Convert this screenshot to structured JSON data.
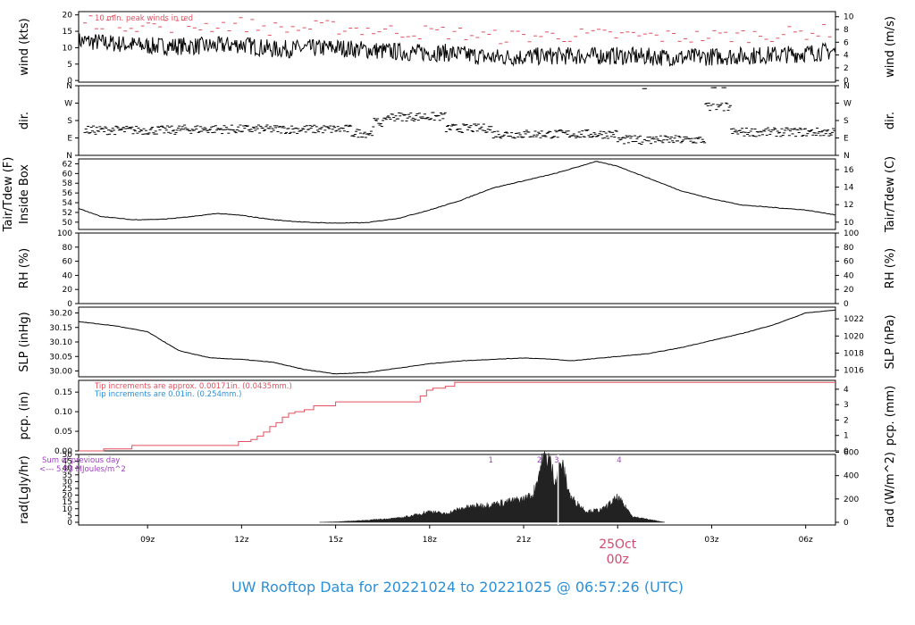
{
  "footer_title": "UW Rooftop Data for 20221024  to  20221025 @ 06:57:26  (UTC)",
  "colors": {
    "axis": "#000000",
    "peak": "#e0505f",
    "note_red": "#e0505f",
    "note_blue": "#2b8fd8",
    "note_purple": "#a040c0",
    "day": "#d04a70",
    "footer": "#2b8fd8"
  },
  "chart_data": {
    "type": "line",
    "x_axis": {
      "range_hours": [
        6.8,
        30.95
      ],
      "tick_hours": [
        9,
        12,
        15,
        18,
        21,
        27,
        30
      ],
      "tick_labels": [
        "09z",
        "12z",
        "15z",
        "18z",
        "21z",
        "03z",
        "06z"
      ],
      "day_label": "25Oct",
      "day_sublabel": "00z",
      "day_hour": 24
    },
    "panels": [
      {
        "id": "wind",
        "ylabel": "wind (kts)",
        "ylabel2": "wind (m/s)",
        "ylim": [
          -0.5,
          21
        ],
        "ticks": [
          0,
          5,
          10,
          15,
          20
        ],
        "right_ticks": [
          0,
          2,
          4,
          6,
          8,
          10
        ],
        "right_factor": 0.514444,
        "note": "10 min. peak winds in red",
        "series": [
          {
            "kind": "wind",
            "hours": [
              7,
              9,
              11,
              12,
              13,
              15,
              16.5,
              17.5,
              18.5,
              20,
              22,
              24,
              26,
              28,
              29.5,
              30.95
            ],
            "values": [
              12,
              10.5,
              10.5,
              11,
              9.5,
              10,
              9,
              8.5,
              8.5,
              7,
              7.5,
              7.5,
              7,
              7.5,
              8,
              9
            ]
          }
        ]
      },
      {
        "id": "dir",
        "ylabel": "dir.",
        "ylabel2": "dir.",
        "ylim": [
          0,
          360
        ],
        "ticks": [
          0,
          90,
          180,
          270,
          360
        ],
        "tick_labels": [
          "N",
          "E",
          "S",
          "W",
          "N"
        ],
        "right_tick_labels": [
          "N",
          "E",
          "S",
          "W",
          "N"
        ]
      },
      {
        "id": "temp",
        "ylabel": "Tair/Tdew (F)",
        "ylabel_line2": "Inside Box",
        "ylabel2": "Tair/Tdew (C)",
        "ylim": [
          48.5,
          63
        ],
        "ticks": [
          50,
          52,
          54,
          56,
          58,
          60,
          62
        ],
        "right_ticks": [
          10,
          12,
          14,
          16
        ],
        "series": [
          {
            "name": "Tair",
            "hours": [
              6.8,
              7.5,
              8.5,
              9.5,
              10.5,
              11.2,
              12,
              13,
              14,
              15,
              16,
              17,
              18,
              19,
              20,
              21,
              22,
              22.8,
              23.3,
              24,
              25,
              26,
              27,
              28,
              29,
              30,
              30.95
            ],
            "values": [
              52.8,
              51.2,
              50.5,
              50.6,
              51.2,
              51.8,
              51.4,
              50.5,
              50,
              49.8,
              49.9,
              50.8,
              52.5,
              54.5,
              57,
              58.5,
              60,
              61.5,
              62.5,
              61.5,
              59,
              56.5,
              54.8,
              53.5,
              53,
              52.5,
              51.5
            ]
          }
        ]
      },
      {
        "id": "rh",
        "ylabel": "RH (%)",
        "ylabel2": "RH (%)",
        "ylim": [
          0,
          100
        ],
        "ticks": [
          0,
          20,
          40,
          60,
          80,
          100
        ],
        "right_ticks": [
          0,
          20,
          40,
          60,
          80,
          100
        ]
      },
      {
        "id": "slp",
        "ylabel": "SLP (inHg)",
        "ylabel2": "SLP (hPa)",
        "ylim": [
          29.98,
          30.22
        ],
        "ticks": [
          30,
          30.05,
          30.1,
          30.15,
          30.2
        ],
        "tick_labels": [
          "30.00",
          "30.05",
          "30.10",
          "30.15",
          "30.20"
        ],
        "right_ticks": [
          1016,
          1018,
          1020,
          1022
        ],
        "series": [
          {
            "name": "SLP",
            "hours": [
              6.8,
              8,
              9,
              10,
              11,
              12,
              13,
              14,
              15,
              16,
              17,
              18,
              19,
              20,
              21,
              22,
              22.5,
              23,
              24,
              25,
              26,
              27,
              28,
              29,
              30,
              30.95
            ],
            "values": [
              30.17,
              30.155,
              30.135,
              30.07,
              30.045,
              30.04,
              30.03,
              30.005,
              29.99,
              29.995,
              30.01,
              30.025,
              30.035,
              30.04,
              30.045,
              30.04,
              30.035,
              30.04,
              30.05,
              30.06,
              30.08,
              30.105,
              30.13,
              30.16,
              30.2,
              30.21
            ]
          }
        ]
      },
      {
        "id": "pcp",
        "ylabel": "pcp. (in)",
        "ylabel2": "pcp. (mm)",
        "ylim": [
          0,
          0.18
        ],
        "ticks": [
          0,
          0.05,
          0.1,
          0.15
        ],
        "tick_labels": [
          "0.00",
          "0.05",
          "0.10",
          "0.15"
        ],
        "right_ticks": [
          0,
          1,
          2,
          3,
          4
        ],
        "note": "Tip increments are approx. 0.00171in. (0.0435mm.)",
        "note2": "Tip increments are 0.01in. (0.254mm.)",
        "series": [
          {
            "name": "pcp",
            "hours": [
              6.8,
              7.5,
              7.6,
              8.4,
              8.5,
              11.8,
              11.9,
              12.3,
              12.5,
              12.7,
              12.9,
              13.1,
              13.3,
              13.5,
              13.7,
              14,
              14.3,
              14.8,
              15,
              17.5,
              17.7,
              17.9,
              18.1,
              18.5,
              18.8,
              30.95
            ],
            "values": [
              0,
              0,
              0.005,
              0.005,
              0.014,
              0.014,
              0.024,
              0.029,
              0.038,
              0.048,
              0.062,
              0.072,
              0.086,
              0.096,
              0.1,
              0.105,
              0.115,
              0.115,
              0.125,
              0.125,
              0.14,
              0.155,
              0.16,
              0.165,
              0.175,
              0.175
            ]
          }
        ]
      },
      {
        "id": "rad",
        "ylabel": "rad(Lgly/hr)",
        "ylabel2": "rad (W/m^2)",
        "ylim": [
          -2,
          50
        ],
        "ticks": [
          0,
          5,
          10,
          15,
          20,
          25,
          30,
          35,
          40,
          45,
          50
        ],
        "right_ticks": [
          0,
          200,
          400,
          600
        ],
        "note": "Sum of previous day",
        "note2": "<--- 5.88 MJoules/m^2",
        "markers": [
          {
            "label": "1",
            "hour": 19.95
          },
          {
            "label": "2",
            "hour": 21.5
          },
          {
            "label": "3",
            "hour": 22.05
          },
          {
            "label": "4",
            "hour": 24.05
          }
        ],
        "series": [
          {
            "name": "rad",
            "hours": [
              14.5,
              15,
              16,
              17,
              17.5,
              18,
              18.5,
              19,
              19.5,
              20,
              20.5,
              21,
              21.3,
              21.6,
              21.8,
              22,
              22.2,
              22.5,
              23,
              23.5,
              24,
              24.5,
              25,
              25.5
            ],
            "values": [
              0,
              0.3,
              1.5,
              3,
              5,
              8,
              6,
              10,
              12,
              13,
              15,
              17,
              20,
              45,
              48,
              30,
              44,
              18,
              8,
              9,
              18,
              4,
              2,
              0
            ]
          }
        ]
      }
    ]
  }
}
